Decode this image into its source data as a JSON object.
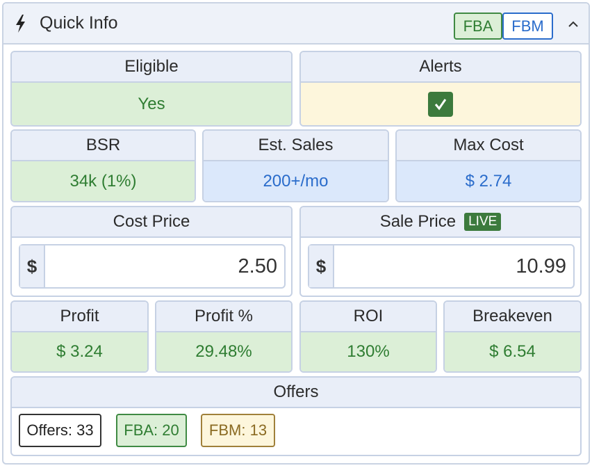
{
  "header": {
    "title": "Quick Info",
    "badges": [
      "FBA",
      "FBM"
    ]
  },
  "row1": [
    {
      "label": "Eligible",
      "value": "Yes"
    },
    {
      "label": "Alerts"
    }
  ],
  "row2": [
    {
      "label": "BSR",
      "value": "34k (1%)"
    },
    {
      "label": "Est. Sales",
      "value": "200+/mo"
    },
    {
      "label": "Max Cost",
      "value": "$ 2.74"
    }
  ],
  "cost_price": {
    "label": "Cost Price",
    "currency": "$",
    "value": "2.50"
  },
  "sale_price": {
    "label": "Sale Price",
    "badge": "LIVE",
    "currency": "$",
    "value": "10.99"
  },
  "row4": [
    {
      "label": "Profit",
      "value": "$ 3.24"
    },
    {
      "label": "Profit %",
      "value": "29.48%"
    },
    {
      "label": "ROI",
      "value": "130%"
    },
    {
      "label": "Breakeven",
      "value": "$ 6.54"
    }
  ],
  "offers": {
    "label": "Offers",
    "chips": [
      "Offers: 33",
      "FBA: 20",
      "FBM: 13"
    ]
  }
}
